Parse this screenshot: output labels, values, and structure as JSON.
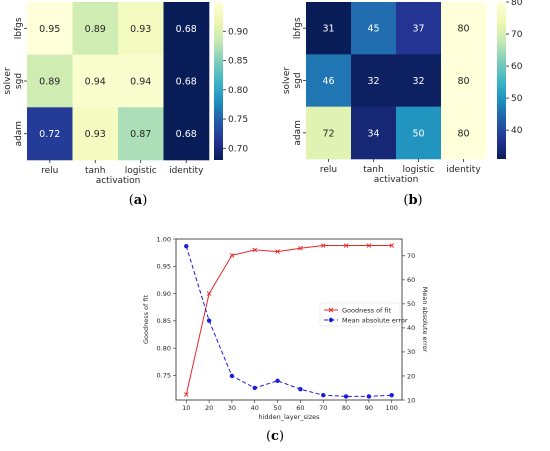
{
  "chart_data": [
    {
      "type": "heatmap",
      "panel_label": "a",
      "xlabel": "activation",
      "ylabel": "solver",
      "x_categories": [
        "relu",
        "tanh",
        "logistic",
        "identity"
      ],
      "y_categories": [
        "lbfgs",
        "sgd",
        "adam"
      ],
      "values": [
        [
          0.95,
          0.89,
          0.93,
          0.68
        ],
        [
          0.89,
          0.94,
          0.94,
          0.68
        ],
        [
          0.72,
          0.93,
          0.87,
          0.68
        ]
      ],
      "value_labels": [
        [
          "0.95",
          "0.89",
          "0.93",
          "0.68"
        ],
        [
          "0.89",
          "0.94",
          "0.94",
          "0.68"
        ],
        [
          "0.72",
          "0.93",
          "0.87",
          "0.68"
        ]
      ],
      "colormap": "YlGnBu_r",
      "color_range": [
        0.68,
        0.95
      ],
      "colorbar_ticks": [
        0.9,
        0.85,
        0.8,
        0.75,
        0.7
      ],
      "colorbar_tick_labels": [
        "0.90",
        "0.85",
        "0.80",
        "0.75",
        "0.70"
      ]
    },
    {
      "type": "heatmap",
      "panel_label": "b",
      "xlabel": "activation",
      "ylabel": "solver",
      "x_categories": [
        "relu",
        "tanh",
        "logistic",
        "identity"
      ],
      "y_categories": [
        "lbfgs",
        "sgd",
        "adam"
      ],
      "values": [
        [
          31,
          45,
          37,
          80
        ],
        [
          46,
          32,
          32,
          80
        ],
        [
          72,
          34,
          50,
          80
        ]
      ],
      "value_labels": [
        [
          "31",
          "45",
          "37",
          "80"
        ],
        [
          "46",
          "32",
          "32",
          "80"
        ],
        [
          "72",
          "34",
          "50",
          "80"
        ]
      ],
      "colormap": "YlGnBu_r",
      "color_range": [
        31,
        80
      ],
      "colorbar_ticks": [
        80,
        70,
        60,
        50,
        40
      ],
      "colorbar_tick_labels": [
        "80",
        "70",
        "60",
        "50",
        "40"
      ]
    },
    {
      "type": "line",
      "panel_label": "c",
      "xlabel": "hidden_layer_sizes",
      "ylabel_left": "Goodness of fit",
      "ylabel_right": "Mean absolute error",
      "x": [
        10,
        20,
        30,
        40,
        50,
        60,
        70,
        80,
        90,
        100
      ],
      "x_tick_labels": [
        "10",
        "20",
        "30",
        "40",
        "50",
        "60",
        "70",
        "80",
        "90",
        "100"
      ],
      "ylim_left": [
        0.705,
        1.0
      ],
      "ylim_right": [
        10,
        77
      ],
      "yticks_left": [
        0.75,
        0.8,
        0.85,
        0.9,
        0.95,
        1.0
      ],
      "yticks_left_labels": [
        "0.75",
        "0.80",
        "0.85",
        "0.90",
        "0.95",
        "1.00"
      ],
      "yticks_right": [
        10,
        20,
        30,
        40,
        50,
        60,
        70
      ],
      "yticks_right_labels": [
        "10",
        "20",
        "30",
        "40",
        "50",
        "60",
        "70"
      ],
      "legend_position": "center-right",
      "series": [
        {
          "name": "Goodness of fit",
          "axis": "left",
          "color": "#e8272b",
          "marker": "x",
          "linestyle": "solid",
          "values": [
            0.715,
            0.9,
            0.97,
            0.98,
            0.977,
            0.983,
            0.988,
            0.988,
            0.988,
            0.988
          ]
        },
        {
          "name": "Mean absolute error",
          "axis": "right",
          "color": "#1c1cdc",
          "marker": "o",
          "linestyle": "dashed",
          "values": [
            74,
            43,
            20,
            15,
            18,
            14.5,
            12,
            11.5,
            11.5,
            12
          ]
        }
      ]
    }
  ],
  "captions": {
    "a": {
      "open": "(",
      "letter": "a",
      "close": ")"
    },
    "b": {
      "open": "(",
      "letter": "b",
      "close": ")"
    },
    "c": {
      "open": "(",
      "letter": "c",
      "close": ")"
    }
  }
}
